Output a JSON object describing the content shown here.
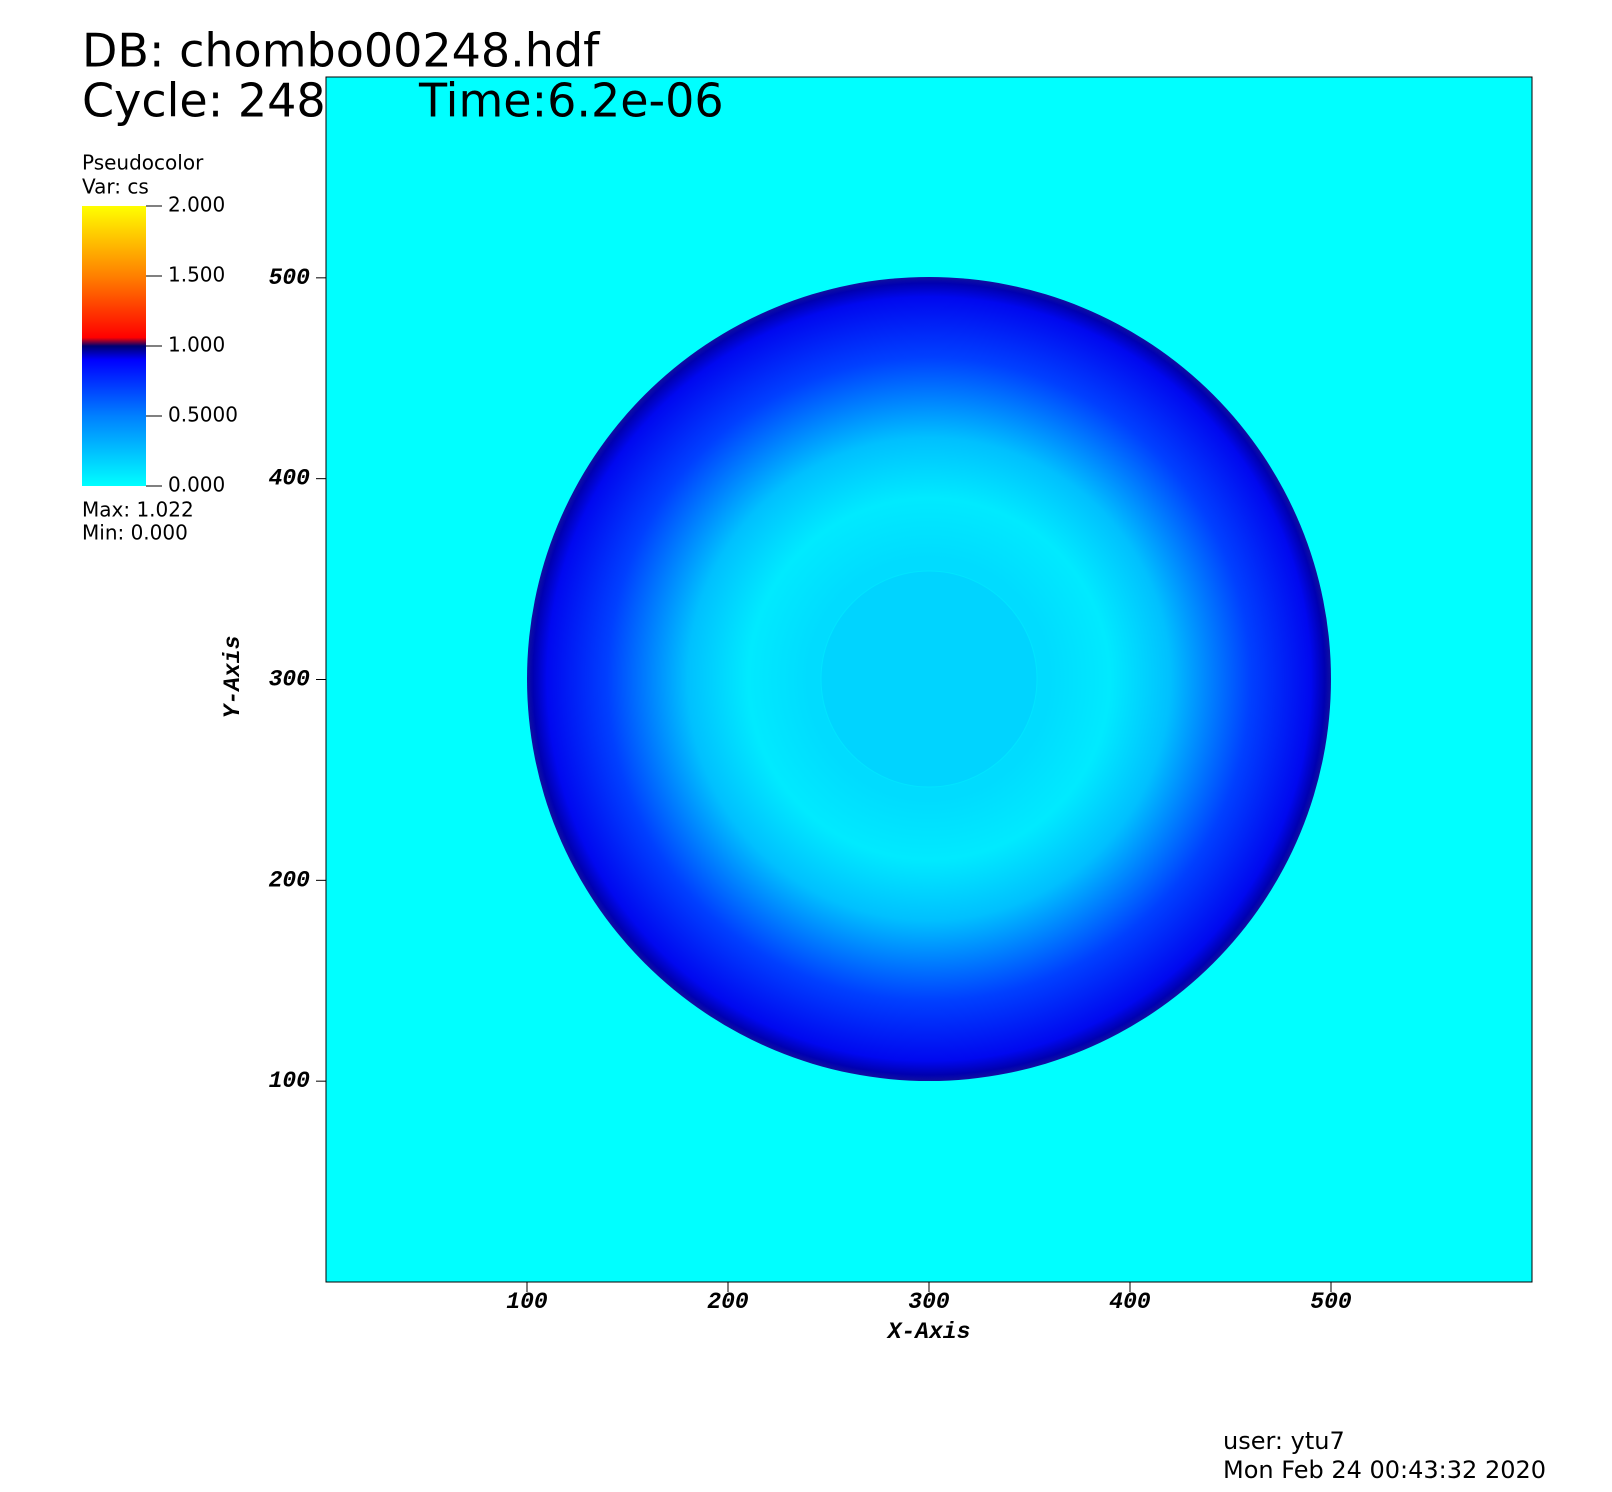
{
  "header": {
    "database": "DB: chombo00248.hdf",
    "cycle": "Cycle: 248",
    "time": "Time:6.2e-06"
  },
  "chart_data": {
    "type": "pseudocolor",
    "xlabel": "X-Axis",
    "ylabel": "Y-Axis",
    "xlim": [
      0,
      600
    ],
    "ylim": [
      0,
      600
    ],
    "xticks": [
      100,
      200,
      300,
      400,
      500
    ],
    "yticks": [
      100,
      200,
      300,
      400,
      500
    ],
    "legend": {
      "title": "Pseudocolor",
      "variable": "Var: cs",
      "range": [
        0,
        2
      ],
      "ticks": [
        {
          "value": 2,
          "label": "2.000"
        },
        {
          "value": 1.5,
          "label": "1.500"
        },
        {
          "value": 1,
          "label": "1.000"
        },
        {
          "value": 0.5,
          "label": "0.5000"
        },
        {
          "value": 0,
          "label": "0.000"
        }
      ],
      "max": "Max:  1.022",
      "min": "Min:  0.000"
    }
  },
  "footer": {
    "user": "user: ytu7",
    "date": "Mon Feb 24 00:43:32 2020"
  }
}
